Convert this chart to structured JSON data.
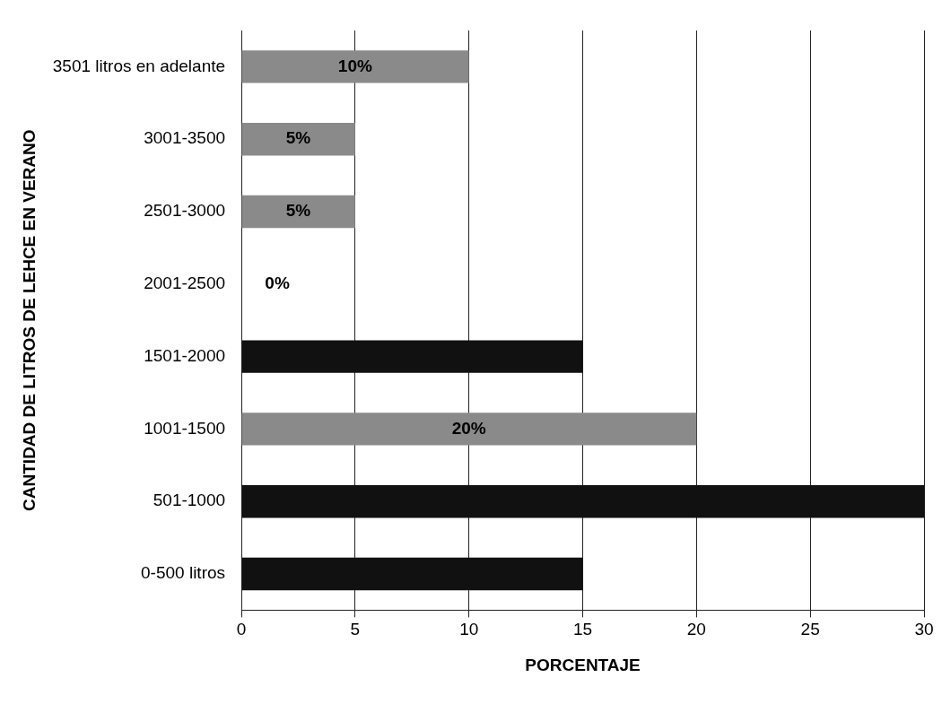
{
  "chart_data": {
    "type": "bar",
    "orientation": "horizontal",
    "xlabel": "PORCENTAJE",
    "ylabel": "CANTIDAD DE LITROS DE LEHCE EN VERANO",
    "categories": [
      "3501 litros en adelante",
      "3001-3500",
      "2501-3000",
      "2001-2500",
      "1501-2000",
      "1001-1500",
      "501-1000",
      "0-500 litros"
    ],
    "values": [
      10,
      5,
      5,
      0,
      15,
      20,
      30,
      15
    ],
    "colors": [
      "#8a8a8a",
      "#8a8a8a",
      "#8a8a8a",
      "#8a8a8a",
      "#111111",
      "#8a8a8a",
      "#111111",
      "#111111"
    ],
    "value_labels": [
      "10%",
      "5%",
      "5%",
      "0%",
      null,
      "20%",
      null,
      null
    ],
    "xlim": [
      0,
      30
    ],
    "xticks": [
      0,
      5,
      10,
      15,
      20,
      25,
      30
    ],
    "grid": "x",
    "legend": false
  }
}
